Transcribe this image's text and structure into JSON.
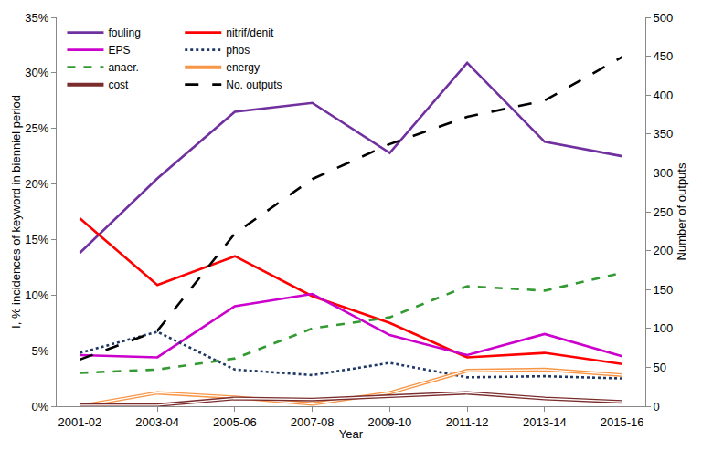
{
  "chart_data": {
    "type": "line",
    "x_label": "Year",
    "y_label": "I, % incidences of keyword in bienniel period",
    "y2_label": "Number of outputs",
    "categories": [
      "2001-02",
      "2003-04",
      "2005-06",
      "2007-08",
      "2009-10",
      "2011-12",
      "2013-14",
      "2015-16"
    ],
    "ylim": [
      0,
      35
    ],
    "yticks": [
      {
        "value": 0,
        "label": "0%"
      },
      {
        "value": 5,
        "label": "5%"
      },
      {
        "value": 10,
        "label": "10%"
      },
      {
        "value": 15,
        "label": "15%"
      },
      {
        "value": 20,
        "label": "20%"
      },
      {
        "value": 25,
        "label": "25%"
      },
      {
        "value": 30,
        "label": "30%"
      },
      {
        "value": 35,
        "label": "35%"
      }
    ],
    "y2lim": [
      0,
      500
    ],
    "y2ticks": [
      0,
      50,
      100,
      150,
      200,
      250,
      300,
      350,
      400,
      450,
      500
    ],
    "grid": false,
    "legend": "upper left",
    "series": [
      {
        "name": "fouling",
        "color": "#7030a0",
        "line_style": "solid",
        "values": [
          13.8,
          20.5,
          26.5,
          27.3,
          22.8,
          30.9,
          23.8,
          22.5
        ]
      },
      {
        "name": "nitrif/denit",
        "color": "#ff0000",
        "line_style": "solid",
        "values": [
          16.9,
          10.9,
          13.5,
          9.9,
          7.5,
          4.4,
          4.8,
          3.8
        ]
      },
      {
        "name": "EPS",
        "color": "#cc00cc",
        "line_style": "solid",
        "values": [
          4.6,
          4.4,
          9.0,
          10.1,
          6.4,
          4.6,
          6.5,
          4.5
        ]
      },
      {
        "name": "phos",
        "color": "#1f3864",
        "line_style": "dotted",
        "values": [
          4.8,
          6.7,
          3.3,
          2.8,
          3.9,
          2.6,
          2.7,
          2.5
        ]
      },
      {
        "name": "anaer.",
        "color": "#339933",
        "line_style": "dashed",
        "values": [
          3.0,
          3.3,
          4.3,
          7.0,
          8.0,
          10.8,
          10.4,
          12.0
        ]
      },
      {
        "name": "energy",
        "color": "#f79646",
        "line_style": "double",
        "values": [
          0.0,
          1.2,
          0.8,
          0.2,
          1.2,
          3.2,
          3.3,
          2.8
        ]
      },
      {
        "name": "cost",
        "color": "#7b2c2c",
        "line_style": "double",
        "values": [
          0.1,
          0.1,
          0.7,
          0.6,
          0.9,
          1.2,
          0.7,
          0.4
        ]
      },
      {
        "name": "No. outputs",
        "color": "#000000",
        "line_style": "longdash",
        "axis": "y2",
        "values": [
          60,
          97,
          222,
          292,
          337,
          372,
          393,
          449
        ]
      }
    ]
  }
}
